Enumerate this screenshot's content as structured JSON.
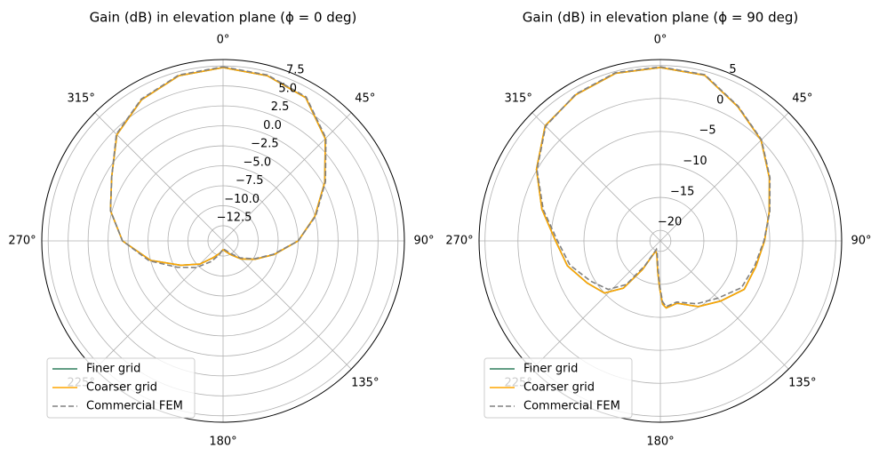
{
  "chart_data": [
    {
      "type": "polar",
      "title": "Gain (dB) in elevation plane (ϕ = 0 deg)",
      "x": [
        0,
        15,
        30,
        45,
        60,
        75,
        90,
        105,
        120,
        135,
        150,
        165,
        180,
        195,
        210,
        225,
        240,
        255,
        270,
        285,
        300,
        315,
        330,
        345,
        360
      ],
      "series": [
        {
          "name": "Finer grid",
          "color": "#2e7d5b",
          "dash": false,
          "values": [
            7.3,
            7.0,
            6.3,
            3.7,
            0.3,
            -2.5,
            -5.0,
            -7.8,
            -9.8,
            -11.2,
            -12.4,
            -13.0,
            -13.3,
            -12.8,
            -12.0,
            -10.3,
            -8.3,
            -5.0,
            -1.8,
            0.2,
            1.7,
            4.4,
            6.0,
            7.0,
            7.3
          ]
        },
        {
          "name": "Coarser grid",
          "color": "#ffa500",
          "dash": false,
          "values": [
            7.3,
            7.0,
            6.3,
            3.7,
            0.3,
            -2.5,
            -5.0,
            -7.8,
            -9.8,
            -11.2,
            -12.4,
            -13.0,
            -13.3,
            -12.8,
            -12.0,
            -10.3,
            -8.3,
            -5.0,
            -1.8,
            0.2,
            1.7,
            4.4,
            6.0,
            7.0,
            7.3
          ]
        },
        {
          "name": "Commercial FEM",
          "color": "#808080",
          "dash": true,
          "values": [
            7.4,
            7.1,
            6.4,
            3.8,
            0.4,
            -2.4,
            -5.0,
            -7.9,
            -9.9,
            -11.4,
            -12.6,
            -13.2,
            -13.4,
            -12.6,
            -11.4,
            -9.7,
            -7.8,
            -4.8,
            -1.8,
            0.2,
            1.7,
            4.5,
            6.1,
            7.1,
            7.4
          ]
        }
      ],
      "rlim": [
        -14.4,
        8.3
      ],
      "rticks": [
        {
          "value": -12.5,
          "label": "−12.5"
        },
        {
          "value": -10,
          "label": "−10.0"
        },
        {
          "value": -7.5,
          "label": "−7.5"
        },
        {
          "value": -5,
          "label": "−5.0"
        },
        {
          "value": -2.5,
          "label": "−2.5"
        },
        {
          "value": 0,
          "label": "0.0"
        },
        2.5,
        {
          "value": 5,
          "label": "5.0"
        },
        7.5
      ],
      "thetaticks": [
        {
          "value": 0,
          "label": "0°"
        },
        {
          "value": 45,
          "label": "45°"
        },
        {
          "value": 90,
          "label": "90°"
        },
        {
          "value": 135,
          "label": "135°"
        },
        {
          "value": 180,
          "label": "180°"
        },
        {
          "value": 225,
          "label": "225°"
        },
        {
          "value": 270,
          "label": "270°"
        },
        {
          "value": 315,
          "label": "315°"
        }
      ],
      "grid": true,
      "legend": "lower left"
    },
    {
      "type": "polar",
      "title": "Gain (dB) in elevation plane (ϕ = 90 deg)",
      "x": [
        0,
        15,
        30,
        45,
        60,
        75,
        90,
        105,
        120,
        135,
        150,
        165,
        175,
        178,
        181,
        185,
        195,
        205,
        212,
        218,
        227,
        240,
        255,
        270,
        285,
        300,
        315,
        330,
        345,
        360
      ],
      "series": [
        {
          "name": "Finer grid",
          "color": "#2e7d5b",
          "dash": false,
          "values": [
            4.7,
            4.4,
            1.9,
            0.0,
            -2.5,
            -4.5,
            -5.8,
            -6.6,
            -6.9,
            -8.7,
            -10.1,
            -11.8,
            -11.4,
            -12.0,
            -14.5,
            -17.0,
            -19.5,
            -19.9,
            -16.5,
            -12.5,
            -10.0,
            -8.8,
            -7.0,
            -5.7,
            -3.0,
            0.1,
            3.1,
            4.0,
            4.7,
            4.7
          ]
        },
        {
          "name": "Coarser grid",
          "color": "#ffa500",
          "dash": false,
          "values": [
            4.7,
            4.4,
            1.9,
            0.0,
            -2.5,
            -4.5,
            -5.8,
            -6.6,
            -6.9,
            -8.7,
            -10.1,
            -11.8,
            -11.4,
            -12.0,
            -14.5,
            -17.0,
            -19.5,
            -19.9,
            -16.5,
            -12.5,
            -10.0,
            -8.8,
            -7.0,
            -5.7,
            -3.0,
            0.1,
            3.1,
            4.0,
            4.7,
            4.7
          ]
        },
        {
          "name": "Commercial FEM",
          "color": "#808080",
          "dash": true,
          "values": [
            4.8,
            4.5,
            2.0,
            0.1,
            -2.4,
            -4.4,
            -5.9,
            -6.8,
            -7.4,
            -9.3,
            -10.6,
            -12.0,
            -11.6,
            -12.4,
            -15.0,
            -17.5,
            -19.8,
            -20.2,
            -17.2,
            -13.2,
            -10.8,
            -9.4,
            -7.4,
            -6.0,
            -3.2,
            0.0,
            3.0,
            4.1,
            4.8,
            4.8
          ]
        }
      ],
      "rlim": [
        -21.6,
        5.9
      ],
      "rticks": [
        {
          "value": -20,
          "label": "−20"
        },
        {
          "value": -15,
          "label": "−15"
        },
        {
          "value": -10,
          "label": "−10"
        },
        {
          "value": -5,
          "label": "−5"
        },
        0,
        5
      ],
      "thetaticks": [
        {
          "value": 0,
          "label": "0°"
        },
        {
          "value": 45,
          "label": "45°"
        },
        {
          "value": 90,
          "label": "90°"
        },
        {
          "value": 135,
          "label": "135°"
        },
        {
          "value": 180,
          "label": "180°"
        },
        {
          "value": 225,
          "label": "225°"
        },
        {
          "value": 270,
          "label": "270°"
        },
        {
          "value": 315,
          "label": "315°"
        }
      ],
      "grid": true,
      "legend": "lower left"
    }
  ]
}
